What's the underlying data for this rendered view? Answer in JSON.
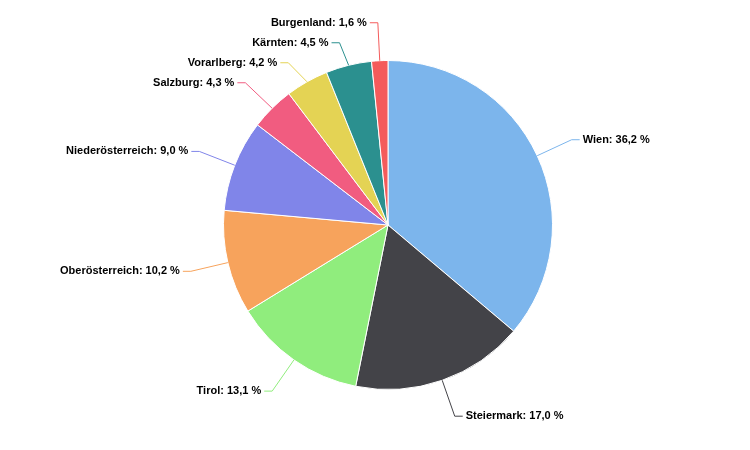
{
  "chart_data": {
    "type": "pie",
    "categories": [
      "Wien",
      "Steiermark",
      "Tirol",
      "Oberösterreich",
      "Niederösterreich",
      "Salzburg",
      "Vorarlberg",
      "Kärnten",
      "Burgenland"
    ],
    "values": [
      36.2,
      17.0,
      13.1,
      10.2,
      9.0,
      4.3,
      4.2,
      4.5,
      1.6
    ],
    "value_labels": [
      "Wien: 36,2 %",
      "Steiermark: 17,0 %",
      "Tirol: 13,1 %",
      "Oberösterreich: 10,2 %",
      "Niederösterreich: 9,0 %",
      "Salzburg: 4,3 %",
      "Vorarlberg: 4,2 %",
      "Kärnten: 4,5 %",
      "Burgenland: 1,6 %"
    ],
    "colors": [
      "#7cb5ec",
      "#434348",
      "#90ed7d",
      "#f7a35c",
      "#8085e9",
      "#f15c80",
      "#e4d354",
      "#2b908f",
      "#f45b5b"
    ],
    "data_labels": true
  }
}
